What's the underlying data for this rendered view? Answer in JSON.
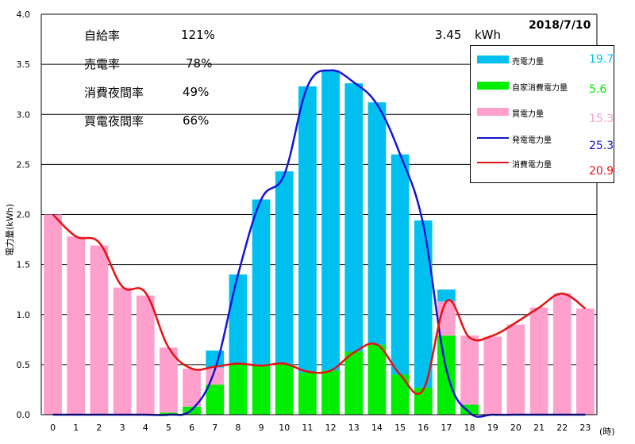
{
  "stats": {
    "self_supply_label": "自給率",
    "self_supply_value": "121%",
    "sold_label": "売電率",
    "sold_value": "78%",
    "night_label": "消費夜間率",
    "night_value": "49%",
    "bought_label": "買電夜間率",
    "bought_value": "66%",
    "energy_value": "3.45",
    "energy_unit": "kWh"
  },
  "date": "2018/7/10",
  "legend": [
    {
      "label": "売電力量",
      "value": "19.7",
      "color": "#00c0f0",
      "kind": "bar"
    },
    {
      "label": "自家消費電力量",
      "value": "5.6",
      "color": "#00ee00",
      "kind": "bar"
    },
    {
      "label": "買電力量",
      "value": "15.3",
      "color": "#ffa0cc",
      "kind": "bar"
    },
    {
      "label": "発電電力量",
      "value": "25.3",
      "color": "#1414d4",
      "kind": "line"
    },
    {
      "label": "消費電力量",
      "value": "20.9",
      "color": "#e81010",
      "kind": "line"
    }
  ],
  "chart_data": {
    "type": "bar",
    "ylabel": "電力量(kWh)",
    "xlabel": "(時)",
    "ylim": [
      0,
      4.0
    ],
    "yticks": [
      "0.0",
      "0.5",
      "1.0",
      "1.5",
      "2.0",
      "2.5",
      "3.0",
      "3.5",
      "4.0"
    ],
    "categories": [
      "0",
      "1",
      "2",
      "3",
      "4",
      "5",
      "6",
      "7",
      "8",
      "9",
      "10",
      "11",
      "12",
      "13",
      "14",
      "15",
      "16",
      "17",
      "18",
      "19",
      "20",
      "21",
      "22",
      "23"
    ],
    "stacked": true,
    "series": [
      {
        "name": "自家消費電力量",
        "color": "#00ee00",
        "values": [
          0,
          0,
          0,
          0,
          0,
          0.02,
          0.08,
          0.3,
          0.5,
          0.49,
          0.5,
          0.42,
          0.44,
          0.63,
          0.7,
          0.4,
          0.27,
          0.79,
          0.1,
          0,
          0,
          0,
          0,
          0
        ]
      },
      {
        "name": "買電力量",
        "color": "#ffa0cc",
        "values": [
          2.0,
          1.78,
          1.69,
          1.27,
          1.19,
          0.65,
          0.38,
          0.17,
          0,
          0,
          0,
          0,
          0,
          0,
          0,
          0,
          0,
          0.34,
          0.69,
          0.78,
          0.9,
          1.07,
          1.21,
          1.06
        ]
      },
      {
        "name": "売電力量",
        "color": "#00c0f0",
        "values": [
          0,
          0,
          0,
          0,
          0,
          0,
          0,
          0.17,
          0.9,
          1.66,
          1.93,
          2.86,
          3.0,
          2.68,
          2.42,
          2.2,
          1.67,
          0.12,
          0,
          0,
          0,
          0,
          0,
          0
        ]
      }
    ],
    "lines": [
      {
        "name": "発電電力量",
        "color": "#1414d4",
        "values": [
          0,
          0,
          0,
          0,
          0,
          0,
          0.05,
          0.45,
          1.4,
          2.15,
          2.4,
          3.28,
          3.44,
          3.32,
          3.1,
          2.6,
          1.9,
          0.45,
          0.02,
          0,
          0,
          0,
          0,
          0
        ]
      },
      {
        "name": "消費電力量",
        "color": "#e81010",
        "values": [
          2.0,
          1.78,
          1.72,
          1.28,
          1.22,
          0.67,
          0.46,
          0.48,
          0.51,
          0.49,
          0.51,
          0.43,
          0.44,
          0.62,
          0.7,
          0.4,
          0.25,
          1.13,
          0.77,
          0.79,
          0.92,
          1.07,
          1.21,
          1.06
        ]
      }
    ]
  }
}
